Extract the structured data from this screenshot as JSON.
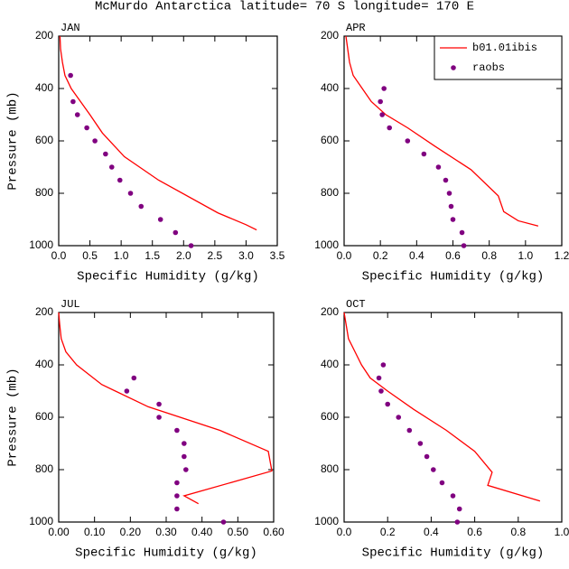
{
  "title": "McMurdo Antarctica  latitude= 70 S longitude= 170 E",
  "chart_data": [
    {
      "type": "line",
      "title": "JAN",
      "xlabel": "Specific Humidity (g/kg)",
      "ylabel": "Pressure (mb)",
      "xlim": [
        0,
        3.5
      ],
      "ylim": [
        1000,
        200
      ],
      "xticks": [
        {
          "value": 0,
          "label": "0.0"
        },
        {
          "value": 0.5,
          "label": "0.5"
        },
        {
          "value": 1,
          "label": "1.0"
        },
        {
          "value": 1.5,
          "label": "1.5"
        },
        {
          "value": 2,
          "label": "2.0"
        },
        {
          "value": 2.5,
          "label": "2.5"
        },
        {
          "value": 3,
          "label": "3.0"
        },
        {
          "value": 3.5,
          "label": "3.5"
        }
      ],
      "yticks": [
        200,
        400,
        600,
        800,
        1000
      ],
      "series": [
        {
          "type": "line",
          "color": "#ff0000",
          "x": [
            0.02,
            0.03,
            0.06,
            0.1,
            0.2,
            0.35,
            0.5,
            0.7,
            1.05,
            1.6,
            2.55,
            3.0,
            3.17
          ],
          "values": [
            200,
            250,
            300,
            350,
            400,
            450,
            500,
            570,
            660,
            750,
            875,
            920,
            940
          ]
        },
        {
          "type": "scatter",
          "color": "#800080",
          "x": [
            0.19,
            0.23,
            0.3,
            0.45,
            0.58,
            0.75,
            0.85,
            0.98,
            1.15,
            1.32,
            1.63,
            1.87,
            2.12
          ],
          "values": [
            350,
            450,
            500,
            550,
            600,
            650,
            700,
            750,
            800,
            850,
            900,
            950,
            1000
          ]
        }
      ]
    },
    {
      "type": "line",
      "title": "APR",
      "xlabel": "Specific Humidity (g/kg)",
      "xlim": [
        0,
        1.2
      ],
      "ylim": [
        1000,
        200
      ],
      "xticks": [
        {
          "value": 0,
          "label": "0.0"
        },
        {
          "value": 0.2,
          "label": "0.2"
        },
        {
          "value": 0.4,
          "label": "0.4"
        },
        {
          "value": 0.6,
          "label": "0.6"
        },
        {
          "value": 0.8,
          "label": "0.8"
        },
        {
          "value": 1,
          "label": "1.0"
        },
        {
          "value": 1.2,
          "label": "1.2"
        }
      ],
      "yticks": [
        200,
        400,
        600,
        800,
        1000
      ],
      "legend": "upper right",
      "series": [
        {
          "name": "b01.01ibis",
          "type": "line",
          "color": "#ff0000",
          "x": [
            0.01,
            0.02,
            0.03,
            0.05,
            0.1,
            0.15,
            0.23,
            0.35,
            0.5,
            0.7,
            0.85,
            0.88,
            0.96,
            1.07
          ],
          "values": [
            200,
            250,
            300,
            350,
            400,
            450,
            500,
            550,
            620,
            710,
            810,
            870,
            905,
            925
          ]
        },
        {
          "name": "raobs",
          "type": "scatter",
          "color": "#800080",
          "x": [
            0.22,
            0.2,
            0.21,
            0.25,
            0.35,
            0.44,
            0.52,
            0.56,
            0.58,
            0.59,
            0.6,
            0.65,
            0.66
          ],
          "values": [
            400,
            450,
            500,
            550,
            600,
            650,
            700,
            750,
            800,
            850,
            900,
            950,
            1000
          ]
        }
      ]
    },
    {
      "type": "line",
      "title": "JUL",
      "xlabel": "Specific Humidity (g/kg)",
      "ylabel": "Pressure (mb)",
      "xlim": [
        0,
        0.6
      ],
      "ylim": [
        1000,
        200
      ],
      "xticks": [
        {
          "value": 0,
          "label": "0.00"
        },
        {
          "value": 0.1,
          "label": "0.10"
        },
        {
          "value": 0.2,
          "label": "0.20"
        },
        {
          "value": 0.3,
          "label": "0.30"
        },
        {
          "value": 0.4,
          "label": "0.40"
        },
        {
          "value": 0.5,
          "label": "0.50"
        },
        {
          "value": 0.6,
          "label": "0.60"
        }
      ],
      "yticks": [
        200,
        400,
        600,
        800,
        1000
      ],
      "series": [
        {
          "type": "line",
          "color": "#ff0000",
          "x": [
            0.0,
            0.003,
            0.007,
            0.02,
            0.05,
            0.12,
            0.25,
            0.45,
            0.585,
            0.595,
            0.35,
            0.39
          ],
          "values": [
            200,
            250,
            300,
            350,
            400,
            475,
            560,
            650,
            730,
            805,
            900,
            930
          ]
        },
        {
          "type": "scatter",
          "color": "#800080",
          "x": [
            0.21,
            0.19,
            0.28,
            0.28,
            0.33,
            0.35,
            0.35,
            0.355,
            0.33,
            0.33,
            0.33,
            0.46
          ],
          "values": [
            450,
            500,
            550,
            600,
            650,
            700,
            750,
            800,
            850,
            900,
            950,
            1000
          ]
        }
      ]
    },
    {
      "type": "line",
      "title": "OCT",
      "xlabel": "Specific Humidity (g/kg)",
      "xlim": [
        0,
        1
      ],
      "ylim": [
        1000,
        200
      ],
      "xticks": [
        {
          "value": 0,
          "label": "0.0"
        },
        {
          "value": 0.2,
          "label": "0.2"
        },
        {
          "value": 0.4,
          "label": "0.4"
        },
        {
          "value": 0.6,
          "label": "0.6"
        },
        {
          "value": 0.8,
          "label": "0.8"
        },
        {
          "value": 1,
          "label": "1.0"
        }
      ],
      "yticks": [
        200,
        400,
        600,
        800,
        1000
      ],
      "series": [
        {
          "type": "line",
          "color": "#ff0000",
          "x": [
            0.0,
            0.01,
            0.02,
            0.05,
            0.08,
            0.12,
            0.2,
            0.32,
            0.47,
            0.6,
            0.68,
            0.66,
            0.9
          ],
          "values": [
            200,
            250,
            300,
            350,
            400,
            450,
            500,
            570,
            650,
            730,
            810,
            860,
            920
          ]
        },
        {
          "type": "scatter",
          "color": "#800080",
          "x": [
            0.18,
            0.16,
            0.17,
            0.2,
            0.25,
            0.3,
            0.35,
            0.38,
            0.41,
            0.45,
            0.5,
            0.53,
            0.52
          ],
          "values": [
            400,
            450,
            500,
            550,
            600,
            650,
            700,
            750,
            800,
            850,
            900,
            950,
            1000
          ]
        }
      ]
    }
  ]
}
